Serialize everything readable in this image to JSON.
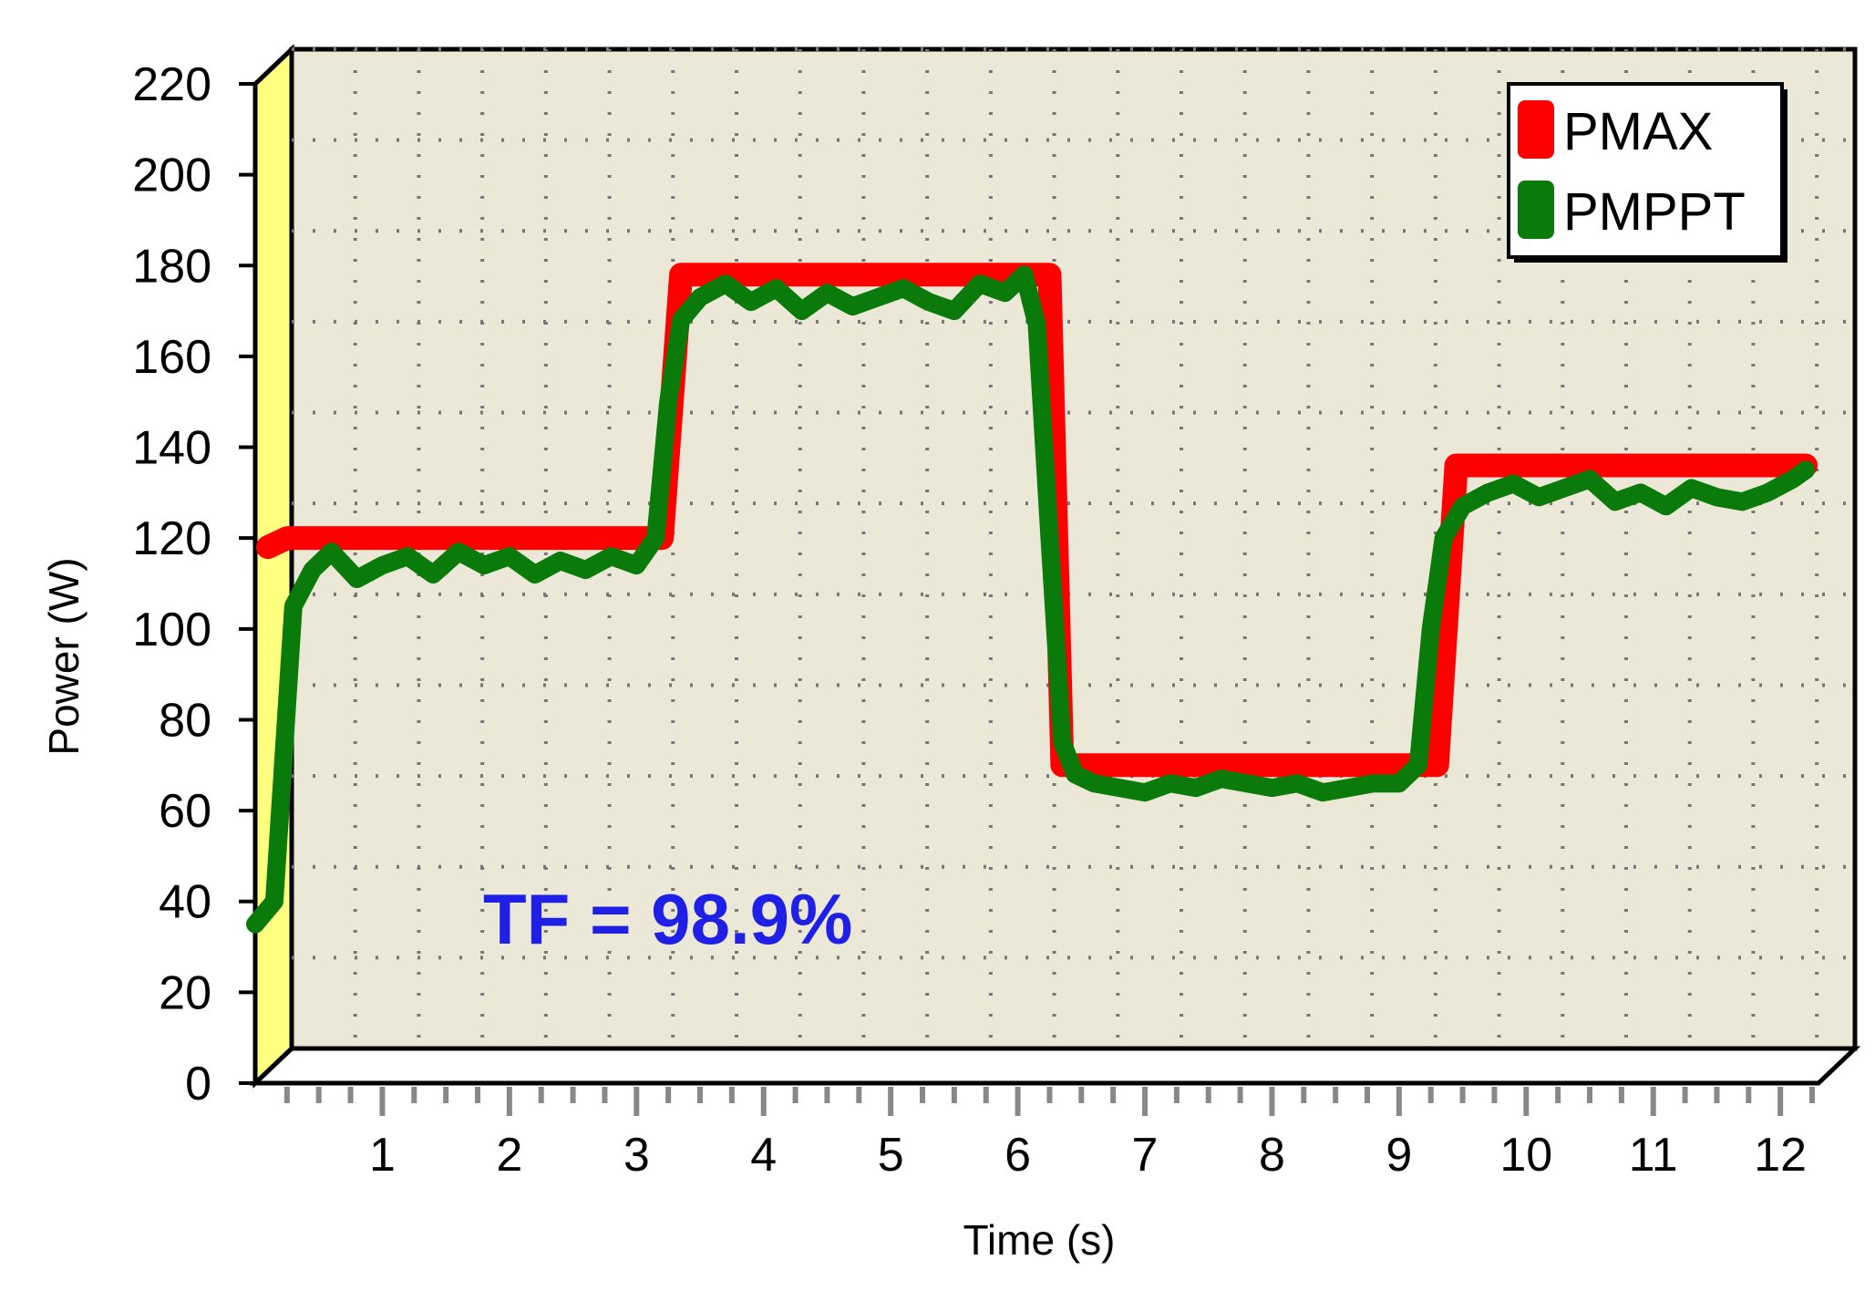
{
  "chart_data": {
    "type": "line",
    "title": "",
    "xlabel": "Time (s)",
    "ylabel": "Power (W)",
    "xlim": [
      0,
      12.3
    ],
    "ylim": [
      0,
      220
    ],
    "x_ticks": [
      1,
      2,
      3,
      4,
      5,
      6,
      7,
      8,
      9,
      10,
      11,
      12
    ],
    "y_ticks": [
      0,
      20,
      40,
      60,
      80,
      100,
      120,
      140,
      160,
      180,
      200,
      220
    ],
    "grid": true,
    "legend_position": "top-right",
    "annotation": "TF = 98.9%",
    "series": [
      {
        "name": "PMAX",
        "color": "#ff0000",
        "x": [
          0.1,
          0.25,
          3.2,
          3.35,
          6.25,
          6.35,
          9.3,
          9.45,
          12.2
        ],
        "y": [
          118,
          120,
          120,
          178,
          178,
          70,
          70,
          136,
          136
        ]
      },
      {
        "name": "PMPPT",
        "color": "#0a7a0a",
        "x": [
          0.0,
          0.15,
          0.3,
          0.45,
          0.6,
          0.8,
          1.0,
          1.2,
          1.4,
          1.6,
          1.8,
          2.0,
          2.2,
          2.4,
          2.6,
          2.8,
          3.0,
          3.15,
          3.25,
          3.35,
          3.5,
          3.7,
          3.9,
          4.1,
          4.3,
          4.5,
          4.7,
          4.9,
          5.1,
          5.3,
          5.5,
          5.7,
          5.9,
          6.05,
          6.15,
          6.25,
          6.35,
          6.45,
          6.6,
          6.8,
          7.0,
          7.2,
          7.4,
          7.6,
          7.8,
          8.0,
          8.2,
          8.4,
          8.6,
          8.8,
          9.0,
          9.15,
          9.25,
          9.35,
          9.5,
          9.7,
          9.9,
          10.1,
          10.3,
          10.5,
          10.7,
          10.9,
          11.1,
          11.3,
          11.5,
          11.7,
          11.9,
          12.1,
          12.2
        ],
        "y": [
          35,
          40,
          105,
          113,
          117,
          111,
          114,
          116,
          112,
          117,
          114,
          116,
          112,
          115,
          113,
          116,
          114,
          120,
          150,
          168,
          173,
          176,
          172,
          175,
          170,
          174,
          171,
          173,
          175,
          172,
          170,
          176,
          174,
          178,
          167,
          120,
          75,
          68,
          66,
          65,
          64,
          66,
          65,
          67,
          66,
          65,
          66,
          64,
          65,
          66,
          66,
          70,
          100,
          120,
          127,
          130,
          132,
          129,
          131,
          133,
          128,
          130,
          127,
          131,
          129,
          128,
          130,
          133,
          135
        ]
      }
    ]
  }
}
